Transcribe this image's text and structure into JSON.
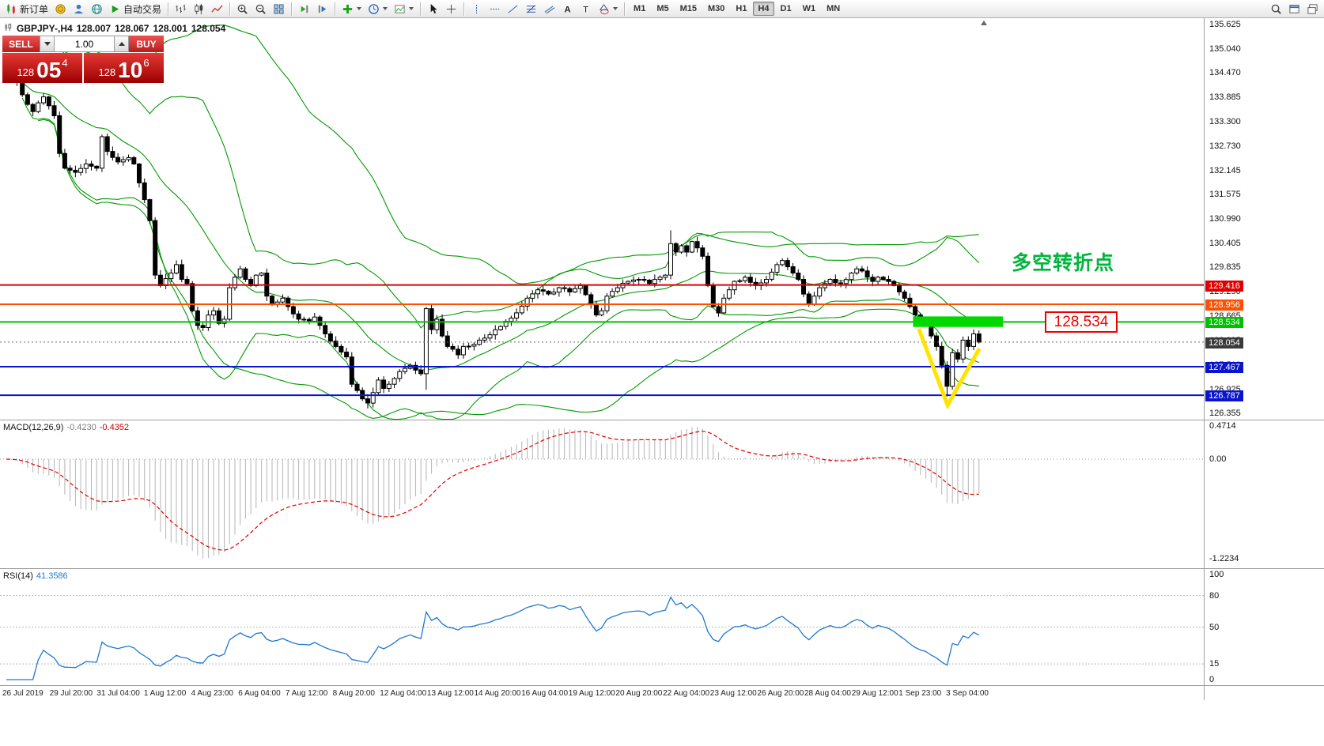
{
  "toolbar": {
    "groups": [
      {
        "items": [
          {
            "icon": "new-order-icon",
            "label": "新订单"
          },
          {
            "icon": "gold-icon"
          },
          {
            "icon": "profile-icon"
          },
          {
            "icon": "community-icon"
          },
          {
            "icon": "autotrade-icon",
            "label": "自动交易"
          }
        ]
      },
      {
        "items": [
          {
            "icon": "bars-chart-icon"
          },
          {
            "icon": "candles-chart-icon"
          },
          {
            "icon": "line-chart-icon"
          }
        ]
      },
      {
        "items": [
          {
            "icon": "zoom-in-icon"
          },
          {
            "icon": "zoom-out-icon"
          },
          {
            "icon": "tile-windows-icon"
          }
        ]
      },
      {
        "items": [
          {
            "icon": "autoscroll-icon"
          },
          {
            "icon": "chart-shift-icon"
          }
        ]
      },
      {
        "items": [
          {
            "icon": "indicators-icon",
            "caret": true
          },
          {
            "icon": "periods-icon",
            "caret": true
          },
          {
            "icon": "template-icon",
            "caret": true
          }
        ]
      },
      {
        "items": [
          {
            "icon": "cursor-icon"
          },
          {
            "icon": "crosshair-icon"
          }
        ]
      },
      {
        "items": [
          {
            "icon": "vline-tool-icon"
          },
          {
            "icon": "hline-tool-icon"
          },
          {
            "icon": "trendline-tool-icon"
          },
          {
            "icon": "fibo-tool-icon"
          },
          {
            "icon": "channel-tool-icon"
          },
          {
            "icon": "text-a-icon"
          },
          {
            "icon": "text-t-icon"
          },
          {
            "icon": "shapes-tool-icon",
            "caret": true
          }
        ]
      },
      {
        "type": "timeframes",
        "items": [
          {
            "label": "M1"
          },
          {
            "label": "M5"
          },
          {
            "label": "M15"
          },
          {
            "label": "M30"
          },
          {
            "label": "H1"
          },
          {
            "label": "H4",
            "active": true
          },
          {
            "label": "D1"
          },
          {
            "label": "W1"
          },
          {
            "label": "MN"
          }
        ]
      }
    ],
    "right_items": [
      {
        "icon": "search-icon"
      },
      {
        "icon": "new-window-icon"
      },
      {
        "icon": "popup-window-icon"
      }
    ]
  },
  "chart": {
    "title": {
      "symbol": "GBPJPY-,H4",
      "open": "128.007",
      "high": "128.067",
      "low": "128.001",
      "close": "128.054"
    },
    "one_click": {
      "sell_label": "SELL",
      "buy_label": "BUY",
      "volume": "1.00",
      "sell_price": {
        "prefix": "128",
        "big": "05",
        "sup": "4"
      },
      "buy_price": {
        "prefix": "128",
        "big": "10",
        "sup": "6"
      }
    }
  },
  "chart_data": {
    "type": "candlestick",
    "symbol": "GBPJPY",
    "timeframe": "H4",
    "y_axis_ticks": [
      "135.625",
      "135.040",
      "134.470",
      "133.885",
      "133.300",
      "132.730",
      "132.145",
      "131.575",
      "130.990",
      "130.405",
      "129.835",
      "129.250",
      "128.665",
      "128.095",
      "127.510",
      "126.925",
      "126.355"
    ],
    "x_axis_labels": [
      "26 Jul 2019",
      "29 Jul 20:00",
      "31 Jul 04:00",
      "1 Aug 12:00",
      "4 Aug 23:00",
      "6 Aug 04:00",
      "7 Aug 12:00",
      "8 Aug 20:00",
      "12 Aug 04:00",
      "13 Aug 12:00",
      "14 Aug 20:00",
      "16 Aug 04:00",
      "19 Aug 12:00",
      "20 Aug 20:00",
      "22 Aug 04:00",
      "23 Aug 12:00",
      "26 Aug 20:00",
      "28 Aug 04:00",
      "29 Aug 12:00",
      "1 Sep 23:00",
      "3 Sep 04:00"
    ],
    "price_levels": [
      {
        "value": 129.416,
        "label": "129.416",
        "color": "#e00000"
      },
      {
        "value": 128.956,
        "label": "128.956",
        "color": "#ff4f00"
      },
      {
        "value": 128.534,
        "label": "128.534",
        "color": "#00c000"
      },
      {
        "value": 127.467,
        "label": "127.467",
        "color": "#0a14cc"
      },
      {
        "value": 126.787,
        "label": "126.787",
        "color": "#0a14cc"
      }
    ],
    "current_price": {
      "value": 128.054,
      "label": "128.054",
      "color": "#3a3a3a"
    },
    "overlays": {
      "bollinger_color": "#009a00"
    },
    "candles": {
      "count": 184,
      "close_anchors": [
        [
          0,
          134.45
        ],
        [
          2,
          134.25
        ],
        [
          3,
          133.95
        ],
        [
          5,
          133.55
        ],
        [
          7,
          133.9
        ],
        [
          9,
          133.45
        ],
        [
          10,
          132.55
        ],
        [
          11,
          132.2
        ],
        [
          13,
          132.1
        ],
        [
          15,
          132.3
        ],
        [
          17,
          132.2
        ],
        [
          18,
          132.95
        ],
        [
          19,
          132.6
        ],
        [
          21,
          132.35
        ],
        [
          23,
          132.45
        ],
        [
          24,
          132.3
        ],
        [
          25,
          131.85
        ],
        [
          26,
          131.45
        ],
        [
          27,
          130.95
        ],
        [
          28,
          129.65
        ],
        [
          29,
          129.4
        ],
        [
          31,
          129.7
        ],
        [
          32,
          129.9
        ],
        [
          33,
          129.55
        ],
        [
          34,
          129.45
        ],
        [
          35,
          128.8
        ],
        [
          36,
          128.45
        ],
        [
          37,
          128.4
        ],
        [
          38,
          128.7
        ],
        [
          39,
          128.8
        ],
        [
          40,
          128.5
        ],
        [
          41,
          128.6
        ],
        [
          42,
          129.35
        ],
        [
          43,
          129.6
        ],
        [
          44,
          129.8
        ],
        [
          45,
          129.55
        ],
        [
          46,
          129.4
        ],
        [
          47,
          129.65
        ],
        [
          48,
          129.7
        ],
        [
          49,
          129.15
        ],
        [
          50,
          128.95
        ],
        [
          52,
          129.1
        ],
        [
          53,
          128.9
        ],
        [
          55,
          128.6
        ],
        [
          57,
          128.55
        ],
        [
          58,
          128.65
        ],
        [
          60,
          128.25
        ],
        [
          62,
          127.95
        ],
        [
          64,
          127.7
        ],
        [
          65,
          127.05
        ],
        [
          66,
          126.9
        ],
        [
          67,
          126.7
        ],
        [
          68,
          126.6
        ],
        [
          69,
          126.85
        ],
        [
          70,
          127.15
        ],
        [
          71,
          126.95
        ],
        [
          72,
          127.05
        ],
        [
          74,
          127.35
        ],
        [
          76,
          127.5
        ],
        [
          78,
          127.3
        ],
        [
          79,
          128.85
        ],
        [
          80,
          128.35
        ],
        [
          81,
          128.6
        ],
        [
          82,
          128.2
        ],
        [
          83,
          127.95
        ],
        [
          85,
          127.75
        ],
        [
          86,
          127.95
        ],
        [
          88,
          128.0
        ],
        [
          90,
          128.15
        ],
        [
          92,
          128.35
        ],
        [
          94,
          128.55
        ],
        [
          96,
          128.75
        ],
        [
          98,
          129.1
        ],
        [
          100,
          129.3
        ],
        [
          102,
          129.2
        ],
        [
          104,
          129.35
        ],
        [
          106,
          129.25
        ],
        [
          108,
          129.4
        ],
        [
          110,
          128.95
        ],
        [
          111,
          128.7
        ],
        [
          112,
          128.8
        ],
        [
          113,
          129.15
        ],
        [
          115,
          129.35
        ],
        [
          117,
          129.5
        ],
        [
          119,
          129.55
        ],
        [
          121,
          129.45
        ],
        [
          123,
          129.6
        ],
        [
          124,
          129.65
        ],
        [
          125,
          130.4
        ],
        [
          126,
          130.2
        ],
        [
          127,
          130.35
        ],
        [
          128,
          130.2
        ],
        [
          129,
          130.45
        ],
        [
          130,
          130.3
        ],
        [
          131,
          130.1
        ],
        [
          132,
          129.4
        ],
        [
          133,
          128.9
        ],
        [
          134,
          128.75
        ],
        [
          135,
          129.1
        ],
        [
          136,
          129.3
        ],
        [
          137,
          129.5
        ],
        [
          139,
          129.6
        ],
        [
          141,
          129.4
        ],
        [
          143,
          129.55
        ],
        [
          145,
          129.9
        ],
        [
          146,
          130.0
        ],
        [
          147,
          129.85
        ],
        [
          148,
          129.7
        ],
        [
          149,
          129.55
        ],
        [
          150,
          129.2
        ],
        [
          151,
          128.95
        ],
        [
          152,
          129.15
        ],
        [
          153,
          129.35
        ],
        [
          154,
          129.45
        ],
        [
          155,
          129.55
        ],
        [
          157,
          129.45
        ],
        [
          159,
          129.7
        ],
        [
          160,
          129.8
        ],
        [
          161,
          129.75
        ],
        [
          162,
          129.6
        ],
        [
          163,
          129.5
        ],
        [
          164,
          129.6
        ],
        [
          165,
          129.55
        ],
        [
          166,
          129.5
        ],
        [
          167,
          129.4
        ],
        [
          168,
          129.25
        ],
        [
          169,
          129.1
        ],
        [
          170,
          128.9
        ],
        [
          171,
          128.7
        ],
        [
          172,
          128.55
        ],
        [
          173,
          128.45
        ],
        [
          174,
          128.2
        ],
        [
          175,
          127.95
        ],
        [
          176,
          127.5
        ],
        [
          177,
          127.0
        ],
        [
          178,
          127.8
        ],
        [
          179,
          127.65
        ],
        [
          180,
          128.1
        ],
        [
          181,
          127.95
        ],
        [
          182,
          128.25
        ],
        [
          183,
          128.054
        ]
      ],
      "wick_overrides": [
        {
          "i": 0,
          "high": 134.75
        },
        {
          "i": 68,
          "low": 126.47
        },
        {
          "i": 79,
          "low": 126.92
        },
        {
          "i": 125,
          "high": 130.72
        },
        {
          "i": 177,
          "low": 126.76
        }
      ]
    },
    "macd": {
      "label": "MACD(12,26,9)",
      "value_main": "-0.4230",
      "value_signal": "-0.4352",
      "axis": [
        "0.4714",
        "0.00",
        "-1.2234"
      ]
    },
    "rsi": {
      "label": "RSI(14)",
      "value": "41.3586",
      "axis": [
        "100",
        "80",
        "50",
        "15",
        "0"
      ],
      "levels": [
        80,
        50,
        15
      ]
    },
    "annotations": {
      "green_zone": {
        "index_from": 170.6,
        "index_to": 187.5,
        "price_from": 128.665,
        "price_to": 128.415,
        "color": "#00d800"
      },
      "yellow_check": {
        "points": [
          [
            171.8,
            128.33
          ],
          [
            177.1,
            126.55
          ],
          [
            182.9,
            127.86
          ]
        ],
        "color": "#ffe400",
        "width": 5
      },
      "turning_point_text": {
        "text": "多空转折点",
        "color": "#00b43c",
        "index": 201,
        "price": 130.02,
        "font_size": 25
      },
      "price_callout": {
        "text": "128.534",
        "index": 202.3,
        "price": 128.53,
        "color": "#ee0000"
      }
    }
  }
}
